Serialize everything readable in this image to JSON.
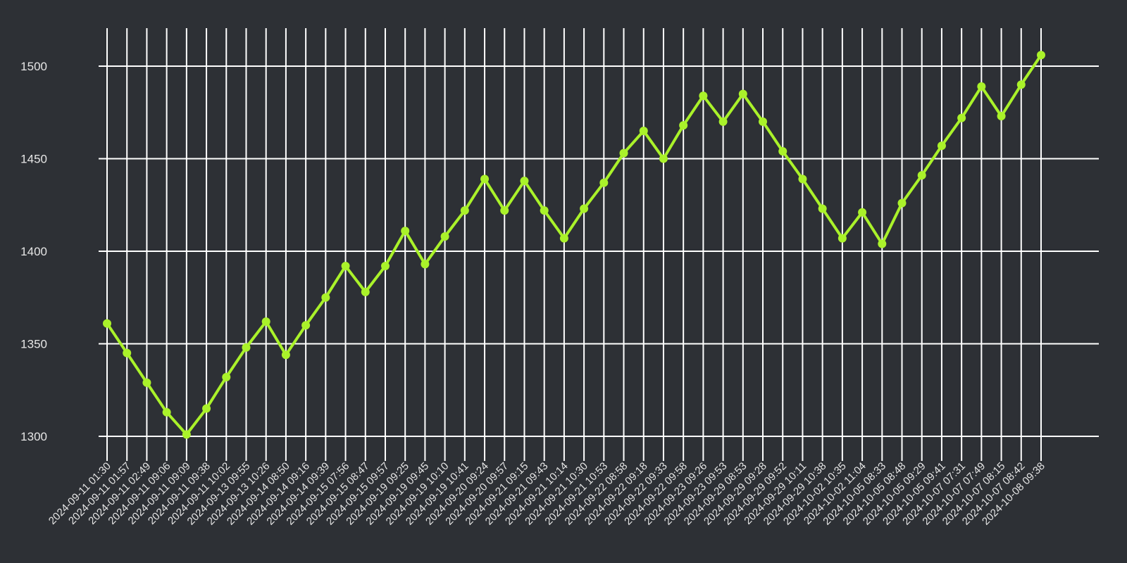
{
  "chart_data": {
    "type": "line",
    "title": "",
    "xlabel": "",
    "ylabel": "",
    "ylim": [
      1280,
      1520
    ],
    "yticks": [
      1300,
      1350,
      1400,
      1450,
      1500
    ],
    "grid": true,
    "colors": {
      "background": "#2d3035",
      "grid": "#ffffff",
      "line": "#aaf22a",
      "text": "#e6e6e6"
    },
    "x": [
      "2024-09-11 01:30",
      "2024-09-11 01:57",
      "2024-09-11 02:49",
      "2024-09-11 09:06",
      "2024-09-11 09:09",
      "2024-09-11 09:38",
      "2024-09-11 10:02",
      "2024-09-13 09:55",
      "2024-09-13 10:26",
      "2024-09-14 08:50",
      "2024-09-14 09:16",
      "2024-09-14 09:39",
      "2024-09-15 07:56",
      "2024-09-15 08:47",
      "2024-09-15 09:57",
      "2024-09-19 09:25",
      "2024-09-19 09:45",
      "2024-09-19 10:10",
      "2024-09-19 10:41",
      "2024-09-20 09:24",
      "2024-09-20 09:57",
      "2024-09-21 09:15",
      "2024-09-21 09:43",
      "2024-09-21 10:14",
      "2024-09-21 10:30",
      "2024-09-21 10:53",
      "2024-09-22 08:58",
      "2024-09-22 09:18",
      "2024-09-22 09:33",
      "2024-09-22 09:58",
      "2024-09-23 09:26",
      "2024-09-23 09:53",
      "2024-09-29 08:53",
      "2024-09-29 09:28",
      "2024-09-29 09:52",
      "2024-09-29 10:11",
      "2024-09-29 10:38",
      "2024-10-02 10:35",
      "2024-10-02 11:04",
      "2024-10-05 08:33",
      "2024-10-05 08:48",
      "2024-10-05 09:29",
      "2024-10-05 09:41",
      "2024-10-07 07:31",
      "2024-10-07 07:49",
      "2024-10-07 08:15",
      "2024-10-07 08:42",
      "2024-10-08 09:38"
    ],
    "series": [
      {
        "name": "",
        "values": [
          1361,
          1345,
          1329,
          1313,
          1301,
          1315,
          1332,
          1348,
          1362,
          1344,
          1360,
          1375,
          1392,
          1378,
          1392,
          1411,
          1393,
          1408,
          1422,
          1439,
          1422,
          1438,
          1422,
          1407,
          1423,
          1437,
          1453,
          1465,
          1450,
          1468,
          1484,
          1470,
          1485,
          1470,
          1454,
          1439,
          1423,
          1407,
          1421,
          1404,
          1426,
          1441,
          1457,
          1472,
          1489,
          1473,
          1490,
          1506
        ]
      }
    ]
  }
}
